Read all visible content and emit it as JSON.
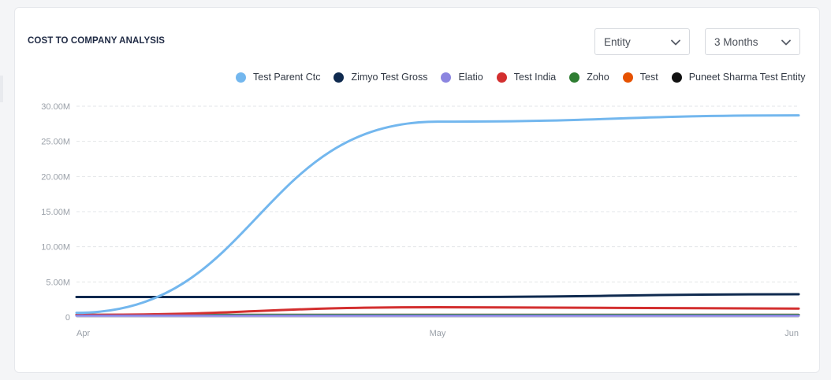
{
  "card": {
    "title": "COST TO COMPANY ANALYSIS"
  },
  "filters": {
    "entity": {
      "label": "Entity",
      "icon": "chevron-down-icon"
    },
    "period": {
      "label": "3 Months",
      "icon": "chevron-down-icon"
    }
  },
  "chart_data": {
    "type": "line",
    "title": "",
    "xlabel": "",
    "ylabel": "",
    "x": [
      "Apr",
      "May",
      "Jun"
    ],
    "ylim": [
      0,
      30000000
    ],
    "y_ticks": [
      "0",
      "5.00M",
      "10.00M",
      "15.00M",
      "20.00M",
      "25.00M",
      "30.00M"
    ],
    "grid": "horizontal dashed",
    "legend_position": "top-right",
    "series": [
      {
        "name": "Test Parent Ctc",
        "color": "#73b7ee",
        "values": [
          600000,
          27800000,
          28700000
        ]
      },
      {
        "name": "Zimyo Test Gross",
        "color": "#0f2a4f",
        "values": [
          2850000,
          2850000,
          3250000
        ]
      },
      {
        "name": "Elatio",
        "color": "#8b85e0",
        "values": [
          200000,
          200000,
          200000
        ]
      },
      {
        "name": "Test India",
        "color": "#d32f2f",
        "values": [
          300000,
          1400000,
          1200000
        ]
      },
      {
        "name": "Zoho",
        "color": "#2e7d32",
        "values": [
          300000,
          300000,
          300000
        ]
      },
      {
        "name": "Test",
        "color": "#e65100",
        "values": [
          300000,
          300000,
          300000
        ]
      },
      {
        "name": "Puneet Sharma Test Entity",
        "color": "#111111",
        "values": [
          300000,
          300000,
          300000
        ]
      }
    ]
  }
}
